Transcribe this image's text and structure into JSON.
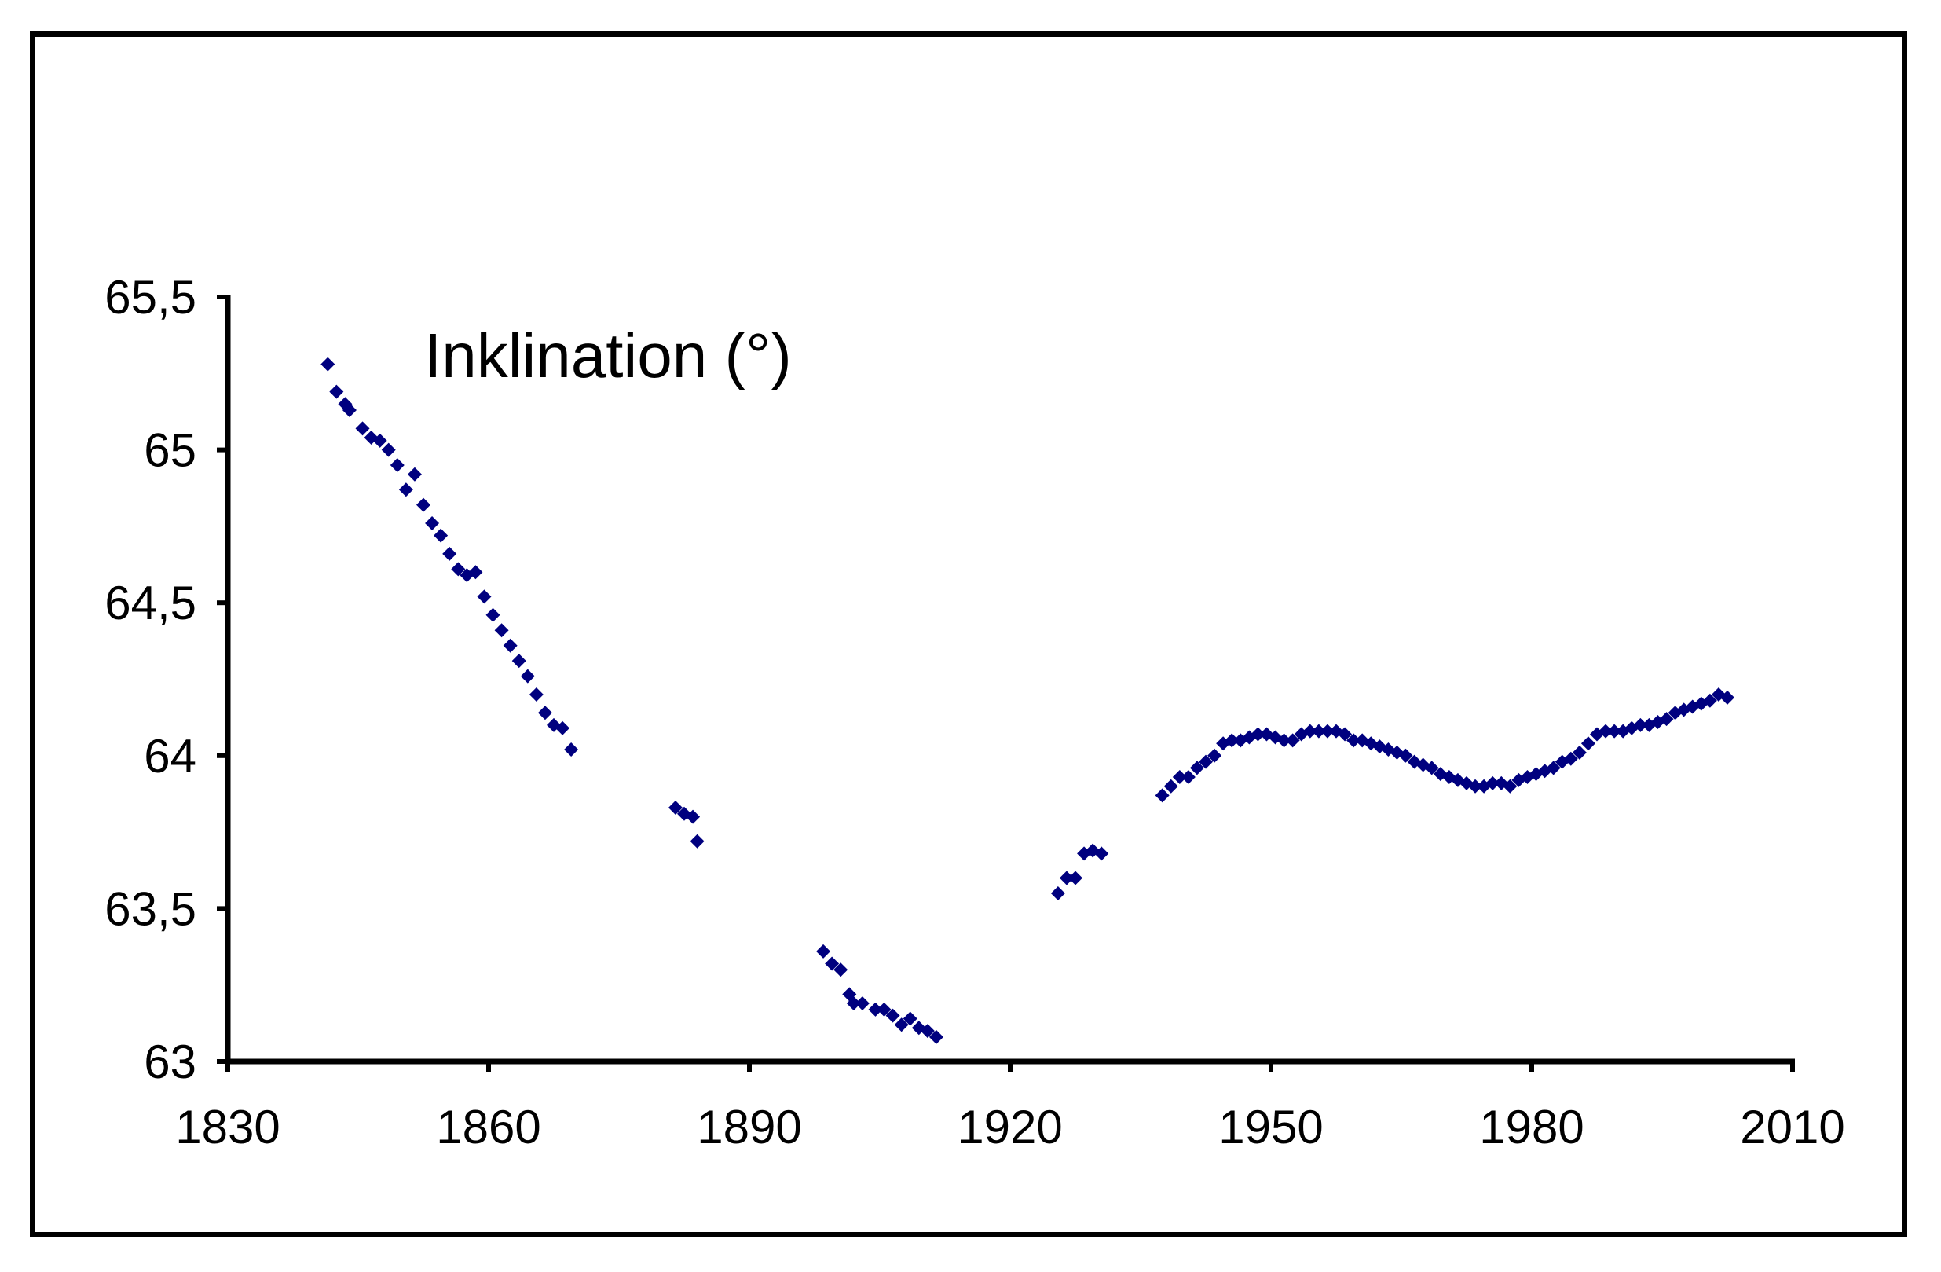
{
  "chart_data": {
    "type": "scatter",
    "title": "Inklination (°)",
    "xlabel": "",
    "ylabel": "",
    "xlim": [
      1830,
      2010
    ],
    "ylim": [
      63,
      65.5
    ],
    "x_ticks": [
      1830,
      1860,
      1890,
      1920,
      1950,
      1980,
      2010
    ],
    "y_ticks": [
      63,
      63.5,
      64,
      64.5,
      65,
      65.5
    ],
    "x_tick_labels": [
      "1830",
      "1860",
      "1890",
      "1920",
      "1950",
      "1980",
      "2010"
    ],
    "y_tick_labels": [
      "63",
      "63,5",
      "64",
      "64,5",
      "65",
      "65,5"
    ],
    "grid": false,
    "legend": "none",
    "marker": "diamond",
    "series_color": "#00007f",
    "series": [
      {
        "points": [
          [
            1841.5,
            65.28
          ],
          [
            1842.5,
            65.19
          ],
          [
            1843.5,
            65.15
          ],
          [
            1844.0,
            65.13
          ],
          [
            1845.5,
            65.07
          ],
          [
            1846.5,
            65.04
          ],
          [
            1847.5,
            65.03
          ],
          [
            1848.5,
            65.0
          ],
          [
            1849.5,
            64.95
          ],
          [
            1850.5,
            64.87
          ],
          [
            1851.5,
            64.92
          ],
          [
            1852.5,
            64.82
          ],
          [
            1853.5,
            64.76
          ],
          [
            1854.5,
            64.72
          ],
          [
            1855.5,
            64.66
          ],
          [
            1856.5,
            64.61
          ],
          [
            1857.5,
            64.59
          ],
          [
            1858.5,
            64.6
          ],
          [
            1859.5,
            64.52
          ],
          [
            1860.5,
            64.46
          ],
          [
            1861.5,
            64.41
          ],
          [
            1862.5,
            64.36
          ],
          [
            1863.5,
            64.31
          ],
          [
            1864.5,
            64.26
          ],
          [
            1865.5,
            64.2
          ],
          [
            1866.5,
            64.14
          ],
          [
            1867.5,
            64.1
          ],
          [
            1868.5,
            64.09
          ],
          [
            1869.5,
            64.02
          ],
          [
            1881.5,
            63.83
          ],
          [
            1882.5,
            63.81
          ],
          [
            1883.5,
            63.8
          ],
          [
            1884.0,
            63.72
          ],
          [
            1898.5,
            63.36
          ],
          [
            1899.5,
            63.32
          ],
          [
            1900.5,
            63.3
          ],
          [
            1901.5,
            63.22
          ],
          [
            1902.0,
            63.19
          ],
          [
            1903.0,
            63.19
          ],
          [
            1904.5,
            63.17
          ],
          [
            1905.5,
            63.17
          ],
          [
            1906.5,
            63.15
          ],
          [
            1907.5,
            63.12
          ],
          [
            1908.5,
            63.14
          ],
          [
            1909.5,
            63.11
          ],
          [
            1910.5,
            63.1
          ],
          [
            1911.5,
            63.08
          ],
          [
            1925.5,
            63.55
          ],
          [
            1926.5,
            63.6
          ],
          [
            1927.5,
            63.6
          ],
          [
            1928.5,
            63.68
          ],
          [
            1929.5,
            63.69
          ],
          [
            1930.5,
            63.68
          ],
          [
            1937.5,
            63.87
          ],
          [
            1938.5,
            63.9
          ],
          [
            1939.5,
            63.93
          ],
          [
            1940.5,
            63.93
          ],
          [
            1941.5,
            63.96
          ],
          [
            1942.5,
            63.98
          ],
          [
            1943.5,
            64.0
          ],
          [
            1944.5,
            64.04
          ],
          [
            1945.5,
            64.05
          ],
          [
            1946.5,
            64.05
          ],
          [
            1947.5,
            64.06
          ],
          [
            1948.5,
            64.07
          ],
          [
            1949.5,
            64.07
          ],
          [
            1950.5,
            64.06
          ],
          [
            1951.5,
            64.05
          ],
          [
            1952.5,
            64.05
          ],
          [
            1953.5,
            64.07
          ],
          [
            1954.5,
            64.08
          ],
          [
            1955.5,
            64.08
          ],
          [
            1956.5,
            64.08
          ],
          [
            1957.5,
            64.08
          ],
          [
            1958.5,
            64.07
          ],
          [
            1959.5,
            64.05
          ],
          [
            1960.5,
            64.05
          ],
          [
            1961.5,
            64.04
          ],
          [
            1962.5,
            64.03
          ],
          [
            1963.5,
            64.02
          ],
          [
            1964.5,
            64.01
          ],
          [
            1965.5,
            64.0
          ],
          [
            1966.5,
            63.98
          ],
          [
            1967.5,
            63.97
          ],
          [
            1968.5,
            63.96
          ],
          [
            1969.5,
            63.94
          ],
          [
            1970.5,
            63.93
          ],
          [
            1971.5,
            63.92
          ],
          [
            1972.5,
            63.91
          ],
          [
            1973.5,
            63.9
          ],
          [
            1974.5,
            63.9
          ],
          [
            1975.5,
            63.91
          ],
          [
            1976.5,
            63.91
          ],
          [
            1977.5,
            63.9
          ],
          [
            1978.5,
            63.92
          ],
          [
            1979.5,
            63.93
          ],
          [
            1980.5,
            63.94
          ],
          [
            1981.5,
            63.95
          ],
          [
            1982.5,
            63.96
          ],
          [
            1983.5,
            63.98
          ],
          [
            1984.5,
            63.99
          ],
          [
            1985.5,
            64.01
          ],
          [
            1986.5,
            64.04
          ],
          [
            1987.5,
            64.07
          ],
          [
            1988.5,
            64.08
          ],
          [
            1989.5,
            64.08
          ],
          [
            1990.5,
            64.08
          ],
          [
            1991.5,
            64.09
          ],
          [
            1992.5,
            64.1
          ],
          [
            1993.5,
            64.1
          ],
          [
            1994.5,
            64.11
          ],
          [
            1995.5,
            64.12
          ],
          [
            1996.5,
            64.14
          ],
          [
            1997.5,
            64.15
          ],
          [
            1998.5,
            64.16
          ],
          [
            1999.5,
            64.17
          ],
          [
            2000.5,
            64.18
          ],
          [
            2001.5,
            64.2
          ],
          [
            2002.5,
            64.19
          ]
        ]
      }
    ]
  }
}
